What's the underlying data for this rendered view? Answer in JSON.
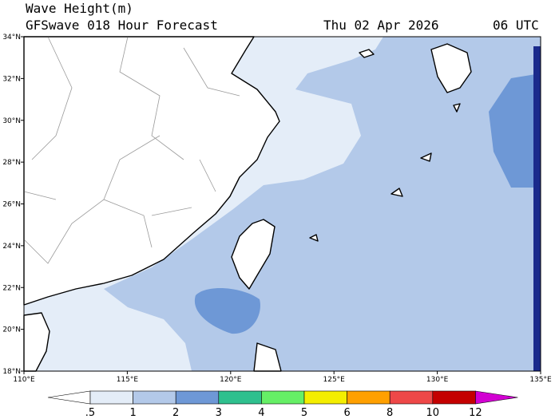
{
  "header": {
    "title": "Wave Height(m)",
    "subtitle": "GFSwave 018 Hour Forecast",
    "date": "Thu 02 Apr 2026",
    "time": "06 UTC"
  },
  "map": {
    "lat_labels": [
      "34°N",
      "32°N",
      "30°N",
      "28°N",
      "26°N",
      "24°N",
      "22°N",
      "20°N",
      "18°N"
    ],
    "lon_labels": [
      "110°E",
      "115°E",
      "120°E",
      "125°E",
      "130°E",
      "135°E"
    ]
  },
  "colorbar": {
    "labels": [
      ".5",
      "1",
      "2",
      "3",
      "4",
      "5",
      "6",
      "8",
      "10",
      "12"
    ],
    "colors": [
      "#ffffff",
      "#e4edf8",
      "#b3c9e9",
      "#6e98d6",
      "#2fc08e",
      "#66ef66",
      "#f4ee00",
      "#ffa000",
      "#ee4848",
      "#c40000",
      "#d200d2"
    ]
  }
}
